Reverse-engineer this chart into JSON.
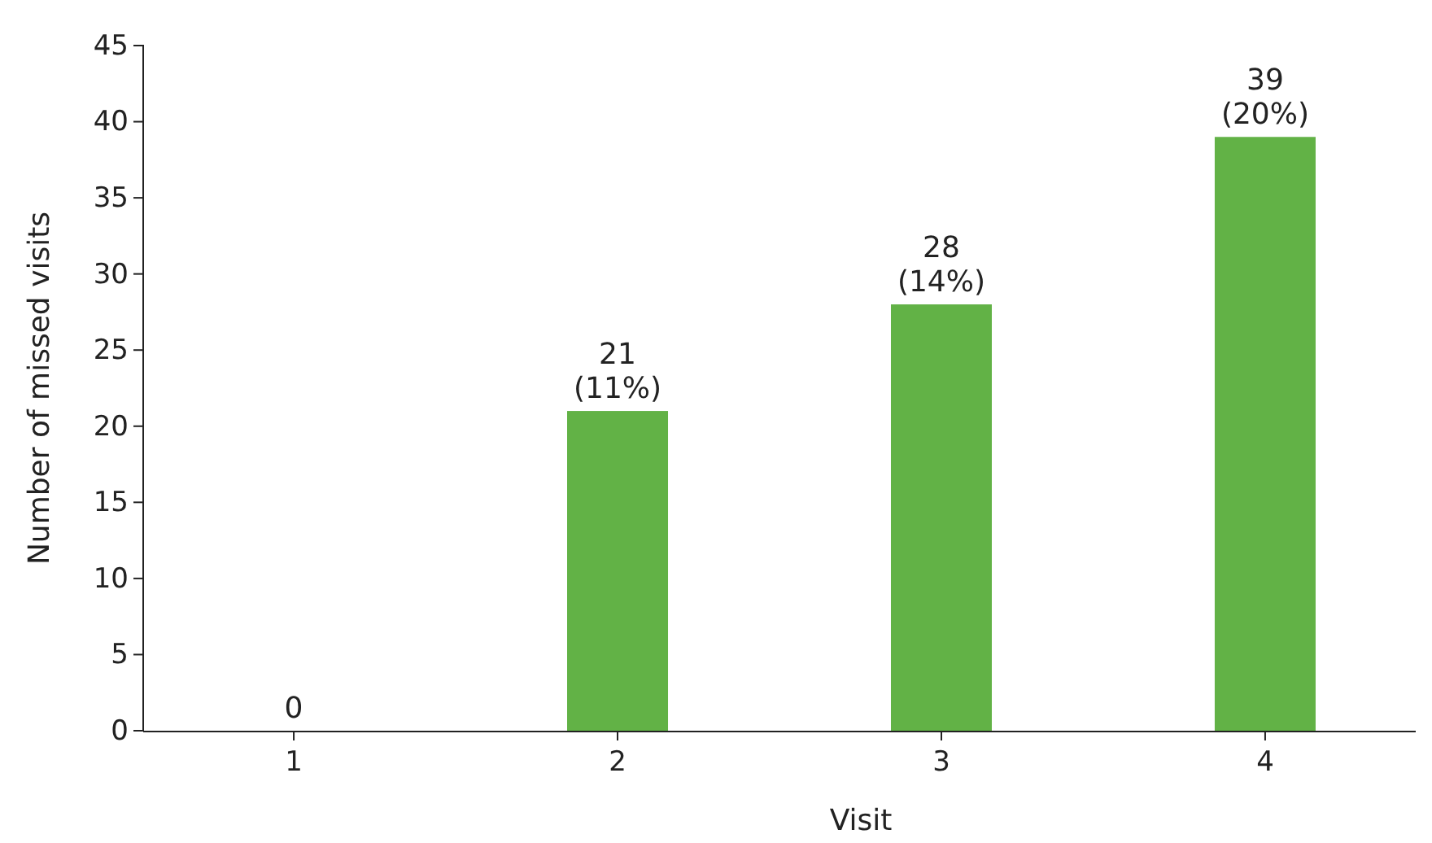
{
  "chart_data": {
    "type": "bar",
    "xlabel": "Visit",
    "ylabel": "Number of missed visits",
    "categories": [
      "1",
      "2",
      "3",
      "4"
    ],
    "values": [
      0,
      21,
      28,
      39
    ],
    "value_labels": [
      "0",
      "21\n(11%)",
      "28\n(14%)",
      "39\n(20%)"
    ],
    "color": "#62b246",
    "ylim": [
      0,
      45
    ],
    "yticks": [
      0,
      5,
      10,
      15,
      20,
      25,
      30,
      35,
      40,
      45
    ],
    "grid": false
  }
}
